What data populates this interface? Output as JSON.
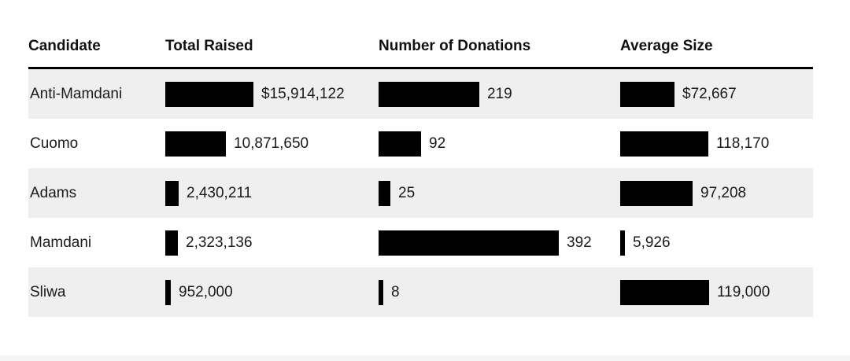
{
  "table": {
    "columns": [
      "Candidate",
      "Total Raised",
      "Number of Donations",
      "Average Size"
    ]
  },
  "chart_data": {
    "type": "table",
    "title": "",
    "categories": [
      "Anti-Mamdani",
      "Cuomo",
      "Adams",
      "Mamdani",
      "Sliwa"
    ],
    "series": [
      {
        "name": "Total Raised",
        "values": [
          15914122,
          10871650,
          2430211,
          2323136,
          952000
        ],
        "labels": [
          "$15,914,122",
          "10,871,650",
          "2,430,211",
          "2,323,136",
          "952,000"
        ]
      },
      {
        "name": "Number of Donations",
        "values": [
          219,
          92,
          25,
          392,
          8
        ],
        "labels": [
          "219",
          "92",
          "25",
          "392",
          "8"
        ]
      },
      {
        "name": "Average Size",
        "values": [
          72667,
          118170,
          97208,
          5926,
          119000
        ],
        "labels": [
          "$72,667",
          "118,170",
          "97,208",
          "5,926",
          "119,000"
        ]
      }
    ],
    "layout_hints": {
      "bar_color": "#000000",
      "row_alt_color": "#efefef",
      "text_color": "#1a1a1a",
      "header_rule_color": "#000000",
      "bars_scaled_per_column_max": true
    }
  }
}
